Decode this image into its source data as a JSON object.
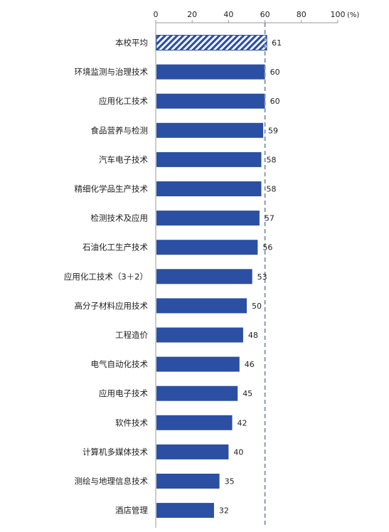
{
  "chart_data": {
    "type": "bar",
    "orientation": "horizontal",
    "axis_unit_label": "(%)",
    "xlim": [
      0,
      100
    ],
    "x_ticks": [
      0,
      20,
      40,
      60,
      80,
      100
    ],
    "reference_line": 60,
    "categories": [
      "本校平均",
      "环境监测与治理技术",
      "应用化工技术",
      "食品营养与检测",
      "汽车电子技术",
      "精细化学品生产技术",
      "检测技术及应用",
      "石油化工生产技术",
      "应用化工技术（3＋2）",
      "高分子材料应用技术",
      "工程造价",
      "电气自动化技术",
      "应用电子技术",
      "软件技术",
      "计算机多媒体技术",
      "测绘与地理信息技术",
      "酒店管理"
    ],
    "values": [
      61,
      60,
      60,
      59,
      58,
      58,
      57,
      56,
      53,
      50,
      48,
      46,
      45,
      42,
      40,
      35,
      32
    ],
    "highlight_index": 0,
    "highlight_pattern": "diagonal-hatch",
    "grid": false,
    "legend": "none",
    "colors": {
      "bar": "#2b4fa3",
      "highlight": "#2b4fa3",
      "reference_line": "#8a98b4",
      "axis": "#9a9a9a",
      "text": "#222222"
    }
  }
}
